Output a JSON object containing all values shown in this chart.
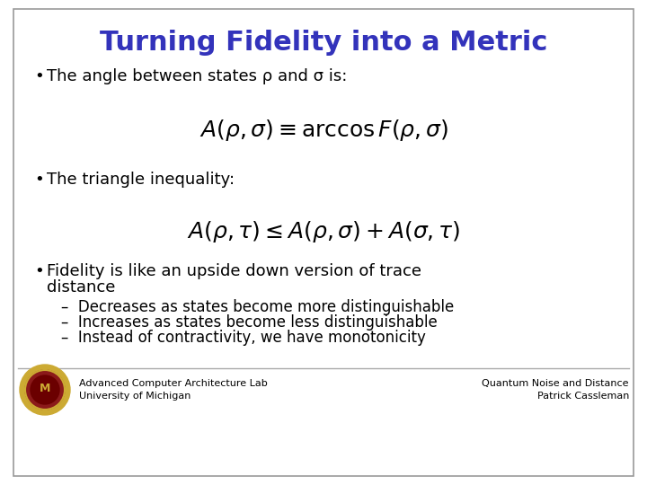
{
  "title": "Turning Fidelity into a Metric",
  "title_color": "#3333BB",
  "title_fontsize": 22,
  "bg_color": "#FFFFFF",
  "slide_bg": "#FFFFFF",
  "border_color": "#999999",
  "bullet1": "The angle between states ρ and σ is:",
  "formula1": "$A(\\rho,\\sigma) \\equiv \\arccos F(\\rho,\\sigma)$",
  "bullet2": "The triangle inequality:",
  "formula2": "$A(\\rho,\\tau) \\leq A(\\rho,\\sigma)+A(\\sigma,\\tau)$",
  "bullet3a": "Fidelity is like an upside down version of trace",
  "bullet3b": "distance",
  "sub1": "Decreases as states become more distinguishable",
  "sub2": "Increases as states become less distinguishable",
  "sub3": "Instead of contractivity, we have monotonicity",
  "footer_left1": "Advanced Computer Architecture Lab",
  "footer_left2": "University of Michigan",
  "footer_right1": "Quantum Noise and Distance",
  "footer_right2": "Patrick Cassleman",
  "bullet_fontsize": 13,
  "formula_fontsize": 18,
  "sub_fontsize": 12,
  "footer_fontsize": 8
}
